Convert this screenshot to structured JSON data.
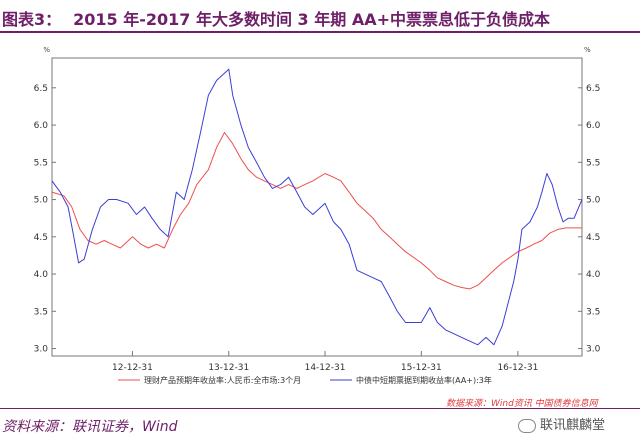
{
  "header": {
    "label": "图表3：",
    "title": "2015 年-2017 年大多数时间 3 年期 AA+中票票息低于负债成本"
  },
  "footer": {
    "source": "资料来源：联讯证券，Wind",
    "stamp": "数据来源：Wind资讯  中国债券信息网",
    "logo_text": "联讯麒麟堂"
  },
  "chart_data": {
    "type": "line",
    "unit_left": "%",
    "unit_right": "%",
    "x_tick_labels": [
      "12-12-31",
      "13-12-31",
      "14-12-31",
      "15-12-31",
      "16-12-31"
    ],
    "x_range": [
      "2012-03-01",
      "2017-08-31"
    ],
    "ylim": [
      2.9,
      6.9
    ],
    "yticks": [
      3.0,
      3.5,
      4.0,
      4.5,
      5.0,
      5.5,
      6.0,
      6.5
    ],
    "legend_position": "bottom",
    "grid": false,
    "series": [
      {
        "name": "理财产品预期年收益率:人民币:全市场:3个月",
        "color": "#ef4f4f",
        "points": [
          [
            "2012-03-01",
            5.1
          ],
          [
            "2012-04-15",
            5.05
          ],
          [
            "2012-05-15",
            4.9
          ],
          [
            "2012-06-15",
            4.6
          ],
          [
            "2012-07-15",
            4.45
          ],
          [
            "2012-08-15",
            4.4
          ],
          [
            "2012-09-15",
            4.45
          ],
          [
            "2012-10-15",
            4.4
          ],
          [
            "2012-11-15",
            4.35
          ],
          [
            "2012-12-31",
            4.5
          ],
          [
            "2013-02-01",
            4.4
          ],
          [
            "2013-03-01",
            4.35
          ],
          [
            "2013-04-01",
            4.4
          ],
          [
            "2013-05-01",
            4.35
          ],
          [
            "2013-06-01",
            4.6
          ],
          [
            "2013-07-01",
            4.8
          ],
          [
            "2013-08-01",
            4.95
          ],
          [
            "2013-09-01",
            5.2
          ],
          [
            "2013-10-15",
            5.4
          ],
          [
            "2013-11-15",
            5.7
          ],
          [
            "2013-12-15",
            5.9
          ],
          [
            "2014-01-15",
            5.75
          ],
          [
            "2014-02-15",
            5.55
          ],
          [
            "2014-03-15",
            5.4
          ],
          [
            "2014-04-15",
            5.3
          ],
          [
            "2014-05-15",
            5.25
          ],
          [
            "2014-06-15",
            5.2
          ],
          [
            "2014-07-15",
            5.15
          ],
          [
            "2014-08-15",
            5.2
          ],
          [
            "2014-09-15",
            5.15
          ],
          [
            "2014-10-15",
            5.2
          ],
          [
            "2014-11-15",
            5.25
          ],
          [
            "2014-12-31",
            5.35
          ],
          [
            "2015-02-01",
            5.3
          ],
          [
            "2015-03-01",
            5.25
          ],
          [
            "2015-04-01",
            5.1
          ],
          [
            "2015-05-01",
            4.95
          ],
          [
            "2015-06-01",
            4.85
          ],
          [
            "2015-07-01",
            4.75
          ],
          [
            "2015-08-01",
            4.6
          ],
          [
            "2015-09-01",
            4.5
          ],
          [
            "2015-10-01",
            4.4
          ],
          [
            "2015-11-01",
            4.3
          ],
          [
            "2015-12-31",
            4.15
          ],
          [
            "2016-02-01",
            4.05
          ],
          [
            "2016-03-01",
            3.95
          ],
          [
            "2016-04-01",
            3.9
          ],
          [
            "2016-05-01",
            3.85
          ],
          [
            "2016-06-01",
            3.82
          ],
          [
            "2016-07-01",
            3.8
          ],
          [
            "2016-08-01",
            3.85
          ],
          [
            "2016-09-01",
            3.95
          ],
          [
            "2016-10-01",
            4.05
          ],
          [
            "2016-11-01",
            4.15
          ],
          [
            "2016-12-31",
            4.3
          ],
          [
            "2017-02-01",
            4.35
          ],
          [
            "2017-03-01",
            4.4
          ],
          [
            "2017-04-01",
            4.45
          ],
          [
            "2017-05-01",
            4.55
          ],
          [
            "2017-06-01",
            4.6
          ],
          [
            "2017-07-01",
            4.62
          ],
          [
            "2017-08-31",
            4.62
          ]
        ]
      },
      {
        "name": "中债中短期票据到期收益率(AA+):3年",
        "color": "#3b3fd6",
        "points": [
          [
            "2012-03-01",
            5.25
          ],
          [
            "2012-04-01",
            5.1
          ],
          [
            "2012-05-01",
            4.9
          ],
          [
            "2012-05-20",
            4.55
          ],
          [
            "2012-06-10",
            4.15
          ],
          [
            "2012-07-01",
            4.2
          ],
          [
            "2012-08-01",
            4.6
          ],
          [
            "2012-09-01",
            4.9
          ],
          [
            "2012-10-01",
            5.0
          ],
          [
            "2012-11-01",
            5.0
          ],
          [
            "2012-12-15",
            4.95
          ],
          [
            "2013-01-15",
            4.8
          ],
          [
            "2013-02-15",
            4.9
          ],
          [
            "2013-03-15",
            4.75
          ],
          [
            "2013-04-15",
            4.6
          ],
          [
            "2013-05-15",
            4.5
          ],
          [
            "2013-06-15",
            5.1
          ],
          [
            "2013-07-15",
            5.0
          ],
          [
            "2013-08-15",
            5.4
          ],
          [
            "2013-09-15",
            5.9
          ],
          [
            "2013-10-15",
            6.4
          ],
          [
            "2013-11-15",
            6.6
          ],
          [
            "2013-12-31",
            6.75
          ],
          [
            "2014-01-15",
            6.4
          ],
          [
            "2014-02-15",
            6.0
          ],
          [
            "2014-03-15",
            5.7
          ],
          [
            "2014-04-15",
            5.5
          ],
          [
            "2014-05-15",
            5.3
          ],
          [
            "2014-06-15",
            5.15
          ],
          [
            "2014-07-15",
            5.2
          ],
          [
            "2014-08-15",
            5.3
          ],
          [
            "2014-09-15",
            5.1
          ],
          [
            "2014-10-15",
            4.9
          ],
          [
            "2014-11-15",
            4.8
          ],
          [
            "2014-12-31",
            4.95
          ],
          [
            "2015-02-01",
            4.7
          ],
          [
            "2015-03-01",
            4.6
          ],
          [
            "2015-04-01",
            4.4
          ],
          [
            "2015-05-01",
            4.05
          ],
          [
            "2015-06-01",
            4.0
          ],
          [
            "2015-07-01",
            3.95
          ],
          [
            "2015-08-01",
            3.9
          ],
          [
            "2015-09-01",
            3.7
          ],
          [
            "2015-10-01",
            3.5
          ],
          [
            "2015-11-01",
            3.35
          ],
          [
            "2015-12-31",
            3.35
          ],
          [
            "2016-02-01",
            3.55
          ],
          [
            "2016-03-01",
            3.35
          ],
          [
            "2016-04-01",
            3.25
          ],
          [
            "2016-05-01",
            3.2
          ],
          [
            "2016-06-01",
            3.15
          ],
          [
            "2016-07-01",
            3.1
          ],
          [
            "2016-08-01",
            3.05
          ],
          [
            "2016-09-01",
            3.15
          ],
          [
            "2016-10-01",
            3.05
          ],
          [
            "2016-11-01",
            3.3
          ],
          [
            "2016-12-15",
            3.9
          ],
          [
            "2016-12-31",
            4.2
          ],
          [
            "2017-01-15",
            4.6
          ],
          [
            "2017-02-15",
            4.7
          ],
          [
            "2017-03-15",
            4.9
          ],
          [
            "2017-04-01",
            5.1
          ],
          [
            "2017-04-20",
            5.35
          ],
          [
            "2017-05-10",
            5.2
          ],
          [
            "2017-06-01",
            4.9
          ],
          [
            "2017-06-20",
            4.7
          ],
          [
            "2017-07-10",
            4.75
          ],
          [
            "2017-08-01",
            4.75
          ],
          [
            "2017-08-31",
            5.0
          ]
        ]
      }
    ]
  }
}
